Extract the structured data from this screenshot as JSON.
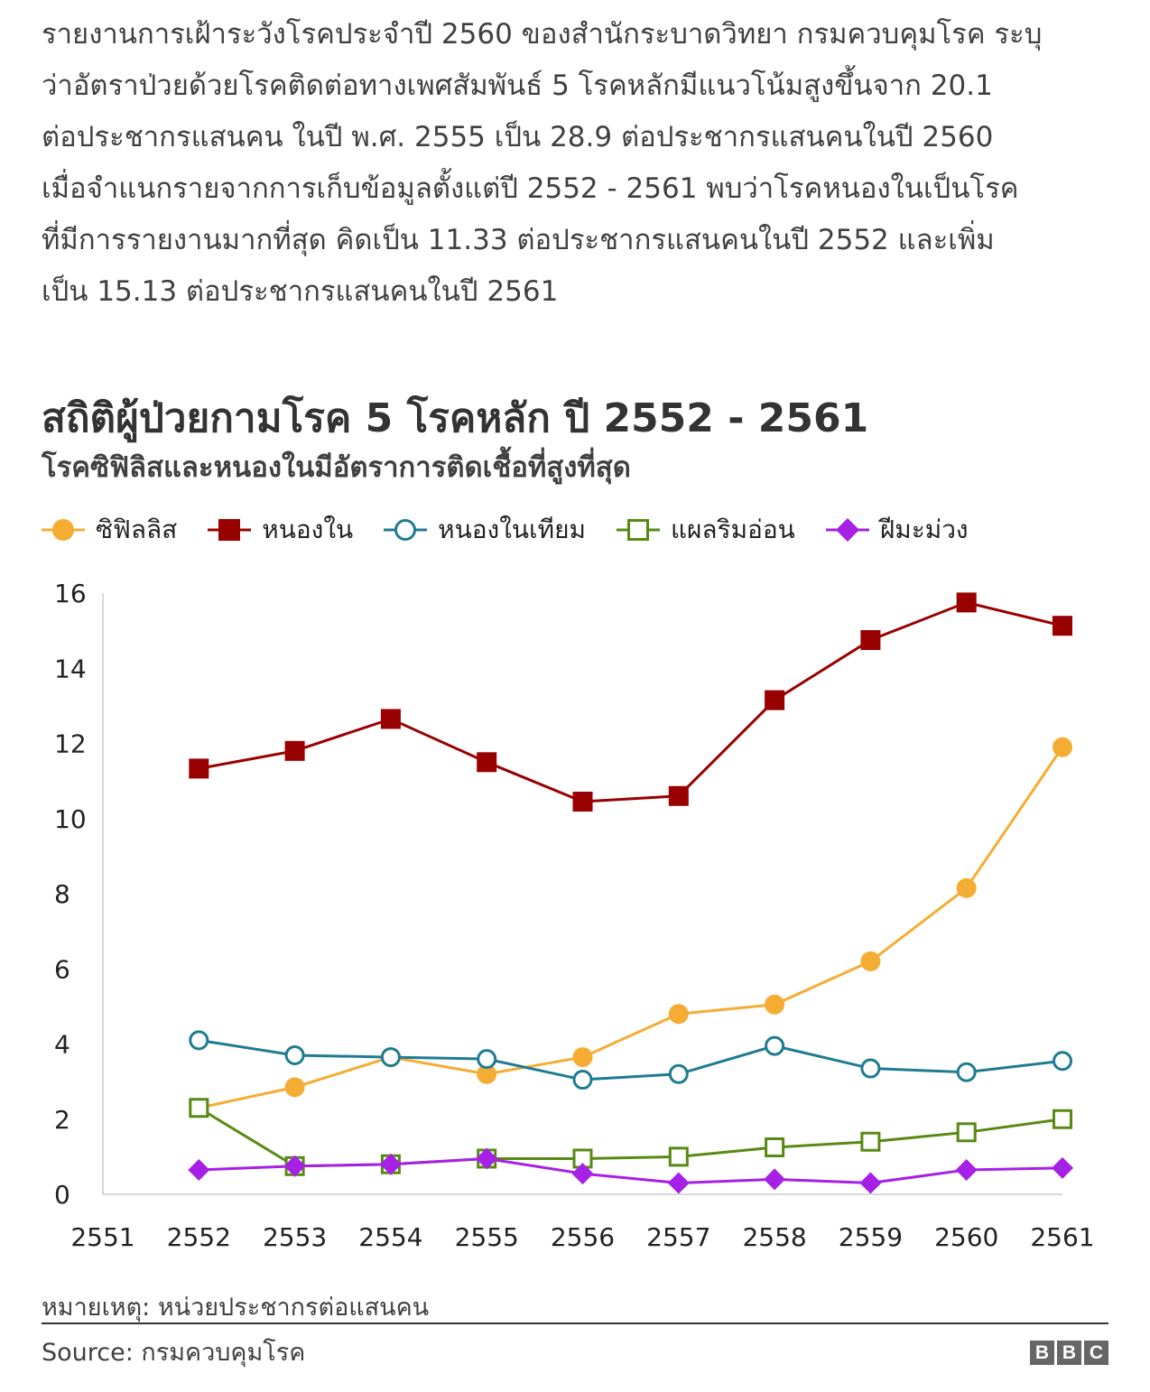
{
  "intro_lines": [
    "รายงานการเฝ้าระวังโรคประจำปี 2560 ของสำนักระบาดวิทยา กรมควบคุมโรค ระบุ",
    "ว่าอัตราป่วยด้วยโรคติดต่อทางเพศสัมพันธ์ 5 โรคหลักมีแนวโน้มสูงขึ้นจาก 20.1",
    "ต่อประชากรแสนคน ในปี พ.ศ. 2555 เป็น 28.9 ต่อประชากรแสนคนในปี 2560",
    "เมื่อจำแนกรายจากการเก็บข้อมูลตั้งแต่ปี 2552 - 2561 พบว่าโรคหนองในเป็นโรค",
    "ที่มีการรายงานมากที่สุด คิดเป็น 11.33 ต่อประชากรแสนคนในปี 2552 และเพิ่ม",
    "เป็น 15.13 ต่อประชากรแสนคนในปี 2561"
  ],
  "chart_data": {
    "type": "line",
    "title": "สถิติผู้ป่วยกามโรค 5 โรคหลัก ปี 2552 - 2561",
    "subtitle": "โรคซิฟิลิสและหนองในมีอัตราการติดเชื้อที่สูงที่สุด",
    "x_ticks": [
      "2551",
      "2552",
      "2553",
      "2554",
      "2555",
      "2556",
      "2557",
      "2558",
      "2559",
      "2560",
      "2561"
    ],
    "x": [
      2552,
      2553,
      2554,
      2555,
      2556,
      2557,
      2558,
      2559,
      2560,
      2561
    ],
    "xlim": [
      2551,
      2561
    ],
    "ylim": [
      0,
      16
    ],
    "y_ticks": [
      0,
      2,
      4,
      6,
      8,
      10,
      12,
      14,
      16
    ],
    "grid": false,
    "legend_position": "top",
    "series": [
      {
        "name": "ซิฟิลลิส",
        "color": "#f5ac33",
        "marker": "circle",
        "values": [
          2.3,
          2.85,
          3.65,
          3.2,
          3.65,
          4.8,
          5.05,
          6.2,
          8.15,
          11.9
        ]
      },
      {
        "name": "หนองใน",
        "color": "#990000",
        "marker": "square",
        "values": [
          11.33,
          11.8,
          12.65,
          11.5,
          10.45,
          10.6,
          13.15,
          14.75,
          15.75,
          15.13
        ]
      },
      {
        "name": "หนองในเทียม",
        "color": "#1f7b93",
        "marker": "open-circle",
        "values": [
          4.1,
          3.7,
          3.65,
          3.6,
          3.05,
          3.2,
          3.95,
          3.35,
          3.25,
          3.55
        ]
      },
      {
        "name": "แผลริมอ่อน",
        "color": "#588a13",
        "marker": "open-square",
        "values": [
          2.3,
          0.75,
          0.8,
          0.95,
          0.95,
          1.0,
          1.25,
          1.4,
          1.65,
          2.0
        ]
      },
      {
        "name": "ฝีมะม่วง",
        "color": "#a620e6",
        "marker": "diamond",
        "values": [
          0.65,
          0.75,
          0.8,
          0.95,
          0.55,
          0.3,
          0.4,
          0.3,
          0.65,
          0.7
        ]
      }
    ]
  },
  "footnote": "หมายเหตุ: หน่วยประชากรต่อแสนคน",
  "source": "Source: กรมควบคุมโรค",
  "logo_letters": [
    "B",
    "B",
    "C"
  ]
}
